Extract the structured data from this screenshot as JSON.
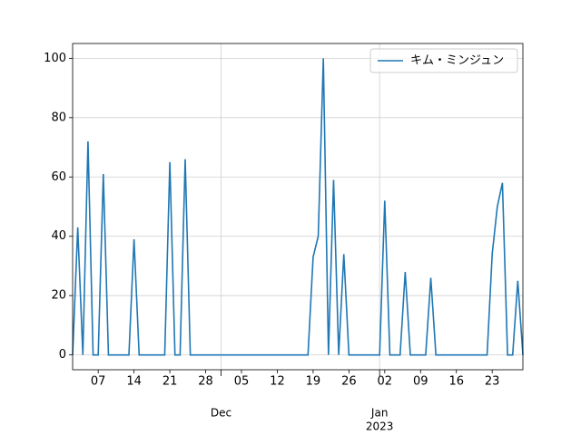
{
  "chart_data": {
    "type": "line",
    "x": [
      "2022-11-02",
      "2022-11-03",
      "2022-11-04",
      "2022-11-05",
      "2022-11-06",
      "2022-11-07",
      "2022-11-08",
      "2022-11-09",
      "2022-11-10",
      "2022-11-11",
      "2022-11-12",
      "2022-11-13",
      "2022-11-14",
      "2022-11-15",
      "2022-11-16",
      "2022-11-17",
      "2022-11-18",
      "2022-11-19",
      "2022-11-20",
      "2022-11-21",
      "2022-11-22",
      "2022-11-23",
      "2022-11-24",
      "2022-11-25",
      "2022-11-26",
      "2022-11-27",
      "2022-11-28",
      "2022-11-29",
      "2022-11-30",
      "2022-12-01",
      "2022-12-02",
      "2022-12-03",
      "2022-12-04",
      "2022-12-05",
      "2022-12-06",
      "2022-12-07",
      "2022-12-08",
      "2022-12-09",
      "2022-12-10",
      "2022-12-11",
      "2022-12-12",
      "2022-12-13",
      "2022-12-14",
      "2022-12-15",
      "2022-12-16",
      "2022-12-17",
      "2022-12-18",
      "2022-12-19",
      "2022-12-20",
      "2022-12-21",
      "2022-12-22",
      "2022-12-23",
      "2022-12-24",
      "2022-12-25",
      "2022-12-26",
      "2022-12-27",
      "2022-12-28",
      "2022-12-29",
      "2022-12-30",
      "2022-12-31",
      "2023-01-01",
      "2023-01-02",
      "2023-01-03",
      "2023-01-04",
      "2023-01-05",
      "2023-01-06",
      "2023-01-07",
      "2023-01-08",
      "2023-01-09",
      "2023-01-10",
      "2023-01-11",
      "2023-01-12",
      "2023-01-13",
      "2023-01-14",
      "2023-01-15",
      "2023-01-16",
      "2023-01-17",
      "2023-01-18",
      "2023-01-19",
      "2023-01-20",
      "2023-01-21",
      "2023-01-22",
      "2023-01-23",
      "2023-01-24",
      "2023-01-25",
      "2023-01-26",
      "2023-01-27",
      "2023-01-28",
      "2023-01-29"
    ],
    "series": [
      {
        "name": "キム・ミンジュン",
        "color": "#1f77b4",
        "values": [
          0,
          43,
          0,
          72,
          0,
          0,
          61,
          0,
          0,
          0,
          0,
          0,
          39,
          0,
          0,
          0,
          0,
          0,
          0,
          65,
          0,
          0,
          66,
          0,
          0,
          0,
          0,
          0,
          0,
          0,
          0,
          0,
          0,
          0,
          0,
          0,
          0,
          0,
          0,
          0,
          0,
          0,
          0,
          0,
          0,
          0,
          0,
          33,
          40,
          100,
          0,
          59,
          0,
          34,
          0,
          0,
          0,
          0,
          0,
          0,
          0,
          52,
          0,
          0,
          0,
          28,
          0,
          0,
          0,
          0,
          26,
          0,
          0,
          0,
          0,
          0,
          0,
          0,
          0,
          0,
          0,
          0,
          34,
          50,
          58,
          0,
          0,
          25,
          0
        ]
      }
    ],
    "xlim": [
      "2022-11-02",
      "2023-01-29"
    ],
    "xticks": [
      {
        "value": "2022-11-07",
        "label": "07"
      },
      {
        "value": "2022-11-14",
        "label": "14"
      },
      {
        "value": "2022-11-21",
        "label": "21"
      },
      {
        "value": "2022-11-28",
        "label": "28"
      },
      {
        "value": "2022-12-05",
        "label": "05"
      },
      {
        "value": "2022-12-12",
        "label": "12"
      },
      {
        "value": "2022-12-19",
        "label": "19"
      },
      {
        "value": "2022-12-26",
        "label": "26"
      },
      {
        "value": "2023-01-02",
        "label": "02"
      },
      {
        "value": "2023-01-09",
        "label": "09"
      },
      {
        "value": "2023-01-16",
        "label": "16"
      },
      {
        "value": "2023-01-23",
        "label": "23"
      }
    ],
    "month_ticks": [
      {
        "value": "2022-12-01",
        "label": "Dec"
      },
      {
        "value": "2023-01-01",
        "label": "Jan"
      }
    ],
    "year_label": "2023",
    "ylim": [
      -5,
      105
    ],
    "yticks": [
      0,
      20,
      40,
      60,
      80,
      100
    ],
    "grid": true,
    "legend": "upper right"
  }
}
